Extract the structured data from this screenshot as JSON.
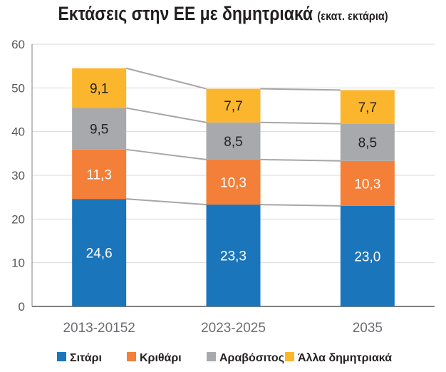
{
  "chart_data": {
    "type": "bar",
    "stacked": true,
    "title": "Εκτάσεις στην ΕΕ με δημητριακά",
    "subtitle": "(εκατ. εκτάρια)",
    "categories": [
      "2013-20152",
      "2023-2025",
      "2035"
    ],
    "series": [
      {
        "name": "Σιτάρι",
        "color": "#1b75bb",
        "values": [
          24.6,
          23.3,
          23.0
        ],
        "labels": [
          "24,6",
          "23,3",
          "23,0"
        ]
      },
      {
        "name": "Κριθάρι",
        "color": "#f37f38",
        "values": [
          11.3,
          10.3,
          10.3
        ],
        "labels": [
          "11,3",
          "10,3",
          "10,3"
        ]
      },
      {
        "name": "Αραβόσιτος",
        "color": "#a7a9ac",
        "values": [
          9.5,
          8.5,
          8.5
        ],
        "labels": [
          "9,5",
          "8,5",
          "8,5"
        ]
      },
      {
        "name": "Άλλα δημητριακά",
        "color": "#fbb62e",
        "values": [
          9.1,
          7.7,
          7.7
        ],
        "labels": [
          "9,1",
          "7,7",
          "7,7"
        ]
      }
    ],
    "ylim": [
      0,
      60
    ],
    "yticks": [
      0,
      10,
      20,
      30,
      40,
      50,
      60
    ],
    "grid": true,
    "legend": "bottom",
    "connector_lines": true
  }
}
